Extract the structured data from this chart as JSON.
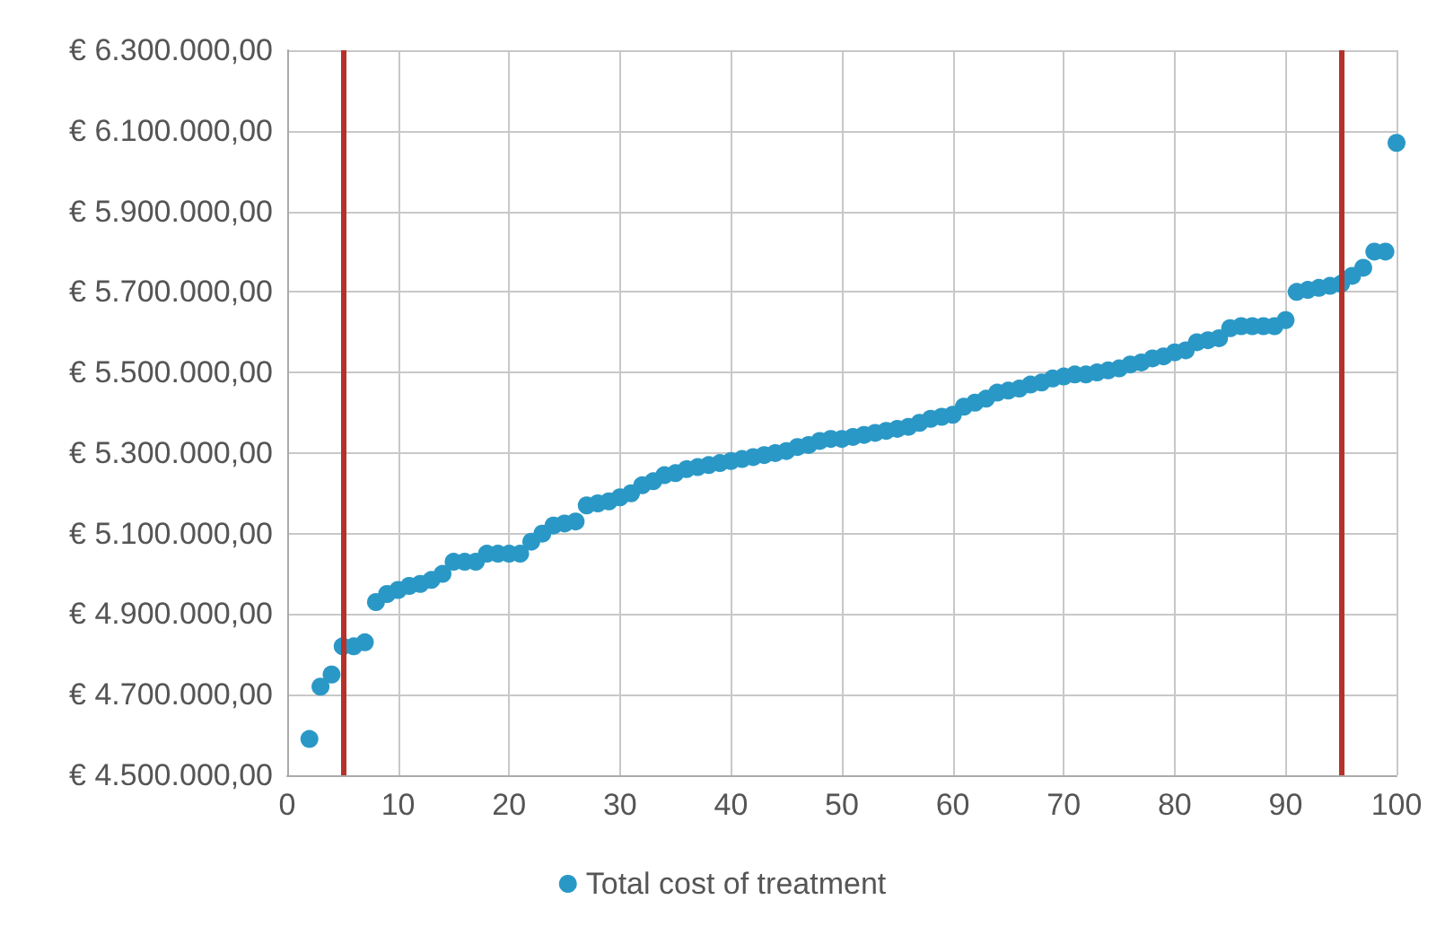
{
  "chart_data": {
    "type": "scatter",
    "x": [
      2,
      3,
      4,
      5,
      6,
      7,
      8,
      9,
      10,
      11,
      12,
      13,
      14,
      15,
      16,
      17,
      18,
      19,
      20,
      21,
      22,
      23,
      24,
      25,
      26,
      27,
      28,
      29,
      30,
      31,
      32,
      33,
      34,
      35,
      36,
      37,
      38,
      39,
      40,
      41,
      42,
      43,
      44,
      45,
      46,
      47,
      48,
      49,
      50,
      51,
      52,
      53,
      54,
      55,
      56,
      57,
      58,
      59,
      60,
      61,
      62,
      63,
      64,
      65,
      66,
      67,
      68,
      69,
      70,
      71,
      72,
      73,
      74,
      75,
      76,
      77,
      78,
      79,
      80,
      81,
      82,
      83,
      84,
      85,
      86,
      87,
      88,
      89,
      90,
      91,
      92,
      93,
      94,
      95,
      96,
      97,
      98,
      99,
      100
    ],
    "series": [
      {
        "name": "Total cost of treatment",
        "color": "#2a98c6",
        "values": [
          4590000,
          4720000,
          4750000,
          4820000,
          4820000,
          4830000,
          4930000,
          4950000,
          4960000,
          4970000,
          4975000,
          4985000,
          5000000,
          5030000,
          5030000,
          5030000,
          5050000,
          5050000,
          5050000,
          5050000,
          5080000,
          5100000,
          5120000,
          5125000,
          5130000,
          5170000,
          5175000,
          5180000,
          5190000,
          5200000,
          5220000,
          5230000,
          5245000,
          5250000,
          5260000,
          5265000,
          5270000,
          5275000,
          5280000,
          5285000,
          5290000,
          5295000,
          5300000,
          5305000,
          5315000,
          5320000,
          5330000,
          5335000,
          5335000,
          5340000,
          5345000,
          5350000,
          5355000,
          5360000,
          5365000,
          5375000,
          5385000,
          5390000,
          5395000,
          5415000,
          5425000,
          5435000,
          5450000,
          5455000,
          5460000,
          5470000,
          5475000,
          5485000,
          5490000,
          5495000,
          5495000,
          5500000,
          5505000,
          5510000,
          5520000,
          5525000,
          5535000,
          5540000,
          5550000,
          5555000,
          5575000,
          5580000,
          5585000,
          5610000,
          5615000,
          5615000,
          5615000,
          5615000,
          5630000,
          5700000,
          5705000,
          5710000,
          5715000,
          5720000,
          5740000,
          5760000,
          5800000,
          5800000,
          6070000
        ]
      }
    ],
    "xlim": [
      0,
      100
    ],
    "xticks": [
      0,
      10,
      20,
      30,
      40,
      50,
      60,
      70,
      80,
      90,
      100
    ],
    "ylim": [
      4500000,
      6300000
    ],
    "yticks": [
      {
        "value": 4500000,
        "label": "€ 4.500.000,00"
      },
      {
        "value": 4700000,
        "label": "€ 4.700.000,00"
      },
      {
        "value": 4900000,
        "label": "€ 4.900.000,00"
      },
      {
        "value": 5100000,
        "label": "€ 5.100.000,00"
      },
      {
        "value": 5300000,
        "label": "€ 5.300.000,00"
      },
      {
        "value": 5500000,
        "label": "€ 5.500.000,00"
      },
      {
        "value": 5700000,
        "label": "€ 5.700.000,00"
      },
      {
        "value": 5900000,
        "label": "€ 5.900.000,00"
      },
      {
        "value": 6100000,
        "label": "€ 6.100.000,00"
      },
      {
        "value": 6300000,
        "label": "€ 6.300.000,00"
      }
    ],
    "ref_lines": [
      {
        "axis": "x",
        "value": 5,
        "color": "#b5322a"
      },
      {
        "axis": "x",
        "value": 95,
        "color": "#b5322a"
      }
    ],
    "grid": true,
    "legend": "bottom",
    "marker": "circle"
  }
}
